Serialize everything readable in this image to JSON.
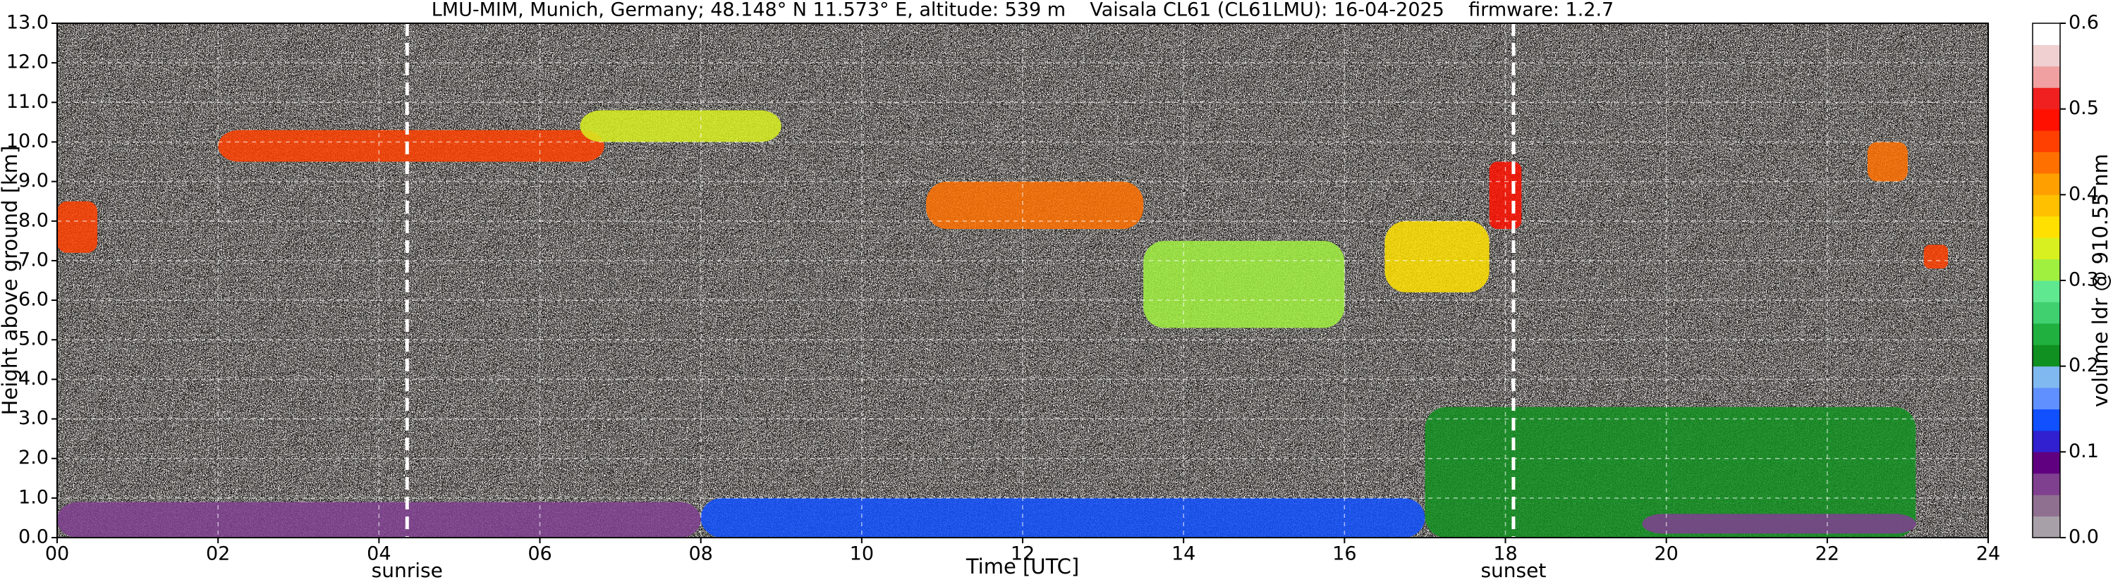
{
  "chart_data": {
    "type": "heatmap",
    "title": "LMU-MIM, Munich, Germany; 48.148° N 11.573° E, altitude: 539 m    Vaisala CL61 (CL61LMU): 16-04-2025    firmware: 1.2.7",
    "x_label": "Time [UTC]",
    "y_label": "Height above ground [km]",
    "xlim": [
      0,
      24
    ],
    "ylim": [
      0,
      13
    ],
    "xticks": [
      {
        "value": 0,
        "label": "00"
      },
      {
        "value": 2,
        "label": "02"
      },
      {
        "value": 4,
        "label": "04"
      },
      {
        "value": 6,
        "label": "06"
      },
      {
        "value": 8,
        "label": "08"
      },
      {
        "value": 10,
        "label": "10"
      },
      {
        "value": 12,
        "label": "12"
      },
      {
        "value": 14,
        "label": "14"
      },
      {
        "value": 16,
        "label": "16"
      },
      {
        "value": 18,
        "label": "18"
      },
      {
        "value": 20,
        "label": "20"
      },
      {
        "value": 22,
        "label": "22"
      },
      {
        "value": 24,
        "label": "24"
      }
    ],
    "yticks": [
      {
        "value": 0,
        "label": "0.0"
      },
      {
        "value": 1,
        "label": "1.0"
      },
      {
        "value": 2,
        "label": "2.0"
      },
      {
        "value": 3,
        "label": "3.0"
      },
      {
        "value": 4,
        "label": "4.0"
      },
      {
        "value": 5,
        "label": "5.0"
      },
      {
        "value": 6,
        "label": "6.0"
      },
      {
        "value": 7,
        "label": "7.0"
      },
      {
        "value": 8,
        "label": "8.0"
      },
      {
        "value": 9,
        "label": "9.0"
      },
      {
        "value": 10,
        "label": "10.0"
      },
      {
        "value": 11,
        "label": "11.0"
      },
      {
        "value": 12,
        "label": "12.0"
      },
      {
        "value": 13,
        "label": "13.0"
      }
    ],
    "grid": true,
    "annotations": [
      {
        "text": "sunrise",
        "x": 4.35
      },
      {
        "text": "sunset",
        "x": 18.1
      }
    ],
    "colorbar": {
      "label": "volume ldr @ 910.55 nm",
      "clim": [
        0,
        0.6
      ],
      "ticks": [
        {
          "value": 0,
          "label": "0.0"
        },
        {
          "value": 0.1,
          "label": "0.1"
        },
        {
          "value": 0.2,
          "label": "0.2"
        },
        {
          "value": 0.3,
          "label": "0.3"
        },
        {
          "value": 0.4,
          "label": "0.4"
        },
        {
          "value": 0.5,
          "label": "0.5"
        },
        {
          "value": 0.6,
          "label": "0.6"
        }
      ],
      "colors": [
        "#a8a0a8",
        "#907090",
        "#804090",
        "#600080",
        "#3020d0",
        "#1050ff",
        "#6090ff",
        "#80b8f0",
        "#109020",
        "#20b040",
        "#40d070",
        "#60e890",
        "#a0f040",
        "#d8f020",
        "#ffe000",
        "#ffc000",
        "#ffa000",
        "#ff7000",
        "#ff4000",
        "#ff1000",
        "#f02020",
        "#f0a0a0",
        "#f0d0d0",
        "#ffffff"
      ]
    },
    "regions": [
      {
        "x": [
          0,
          8
        ],
        "y": [
          0,
          0.9
        ],
        "value": 0.07
      },
      {
        "x": [
          8,
          17
        ],
        "y": [
          0,
          1.0
        ],
        "value": 0.14
      },
      {
        "x": [
          17,
          23.1
        ],
        "y": [
          0,
          3.3
        ],
        "value": 0.22
      },
      {
        "x": [
          19.7,
          23.1
        ],
        "y": [
          0.1,
          0.6
        ],
        "value": 0.06
      },
      {
        "x": [
          2,
          6.8
        ],
        "y": [
          9.5,
          10.3
        ],
        "value": 0.45
      },
      {
        "x": [
          6.5,
          9
        ],
        "y": [
          10,
          10.8
        ],
        "value": 0.33
      },
      {
        "x": [
          0,
          0.5
        ],
        "y": [
          7.2,
          8.5
        ],
        "value": 0.47
      },
      {
        "x": [
          10.8,
          13.5
        ],
        "y": [
          7.8,
          9
        ],
        "value": 0.44
      },
      {
        "x": [
          13.5,
          16
        ],
        "y": [
          5.3,
          7.5
        ],
        "value": 0.32
      },
      {
        "x": [
          16.5,
          17.8
        ],
        "y": [
          6.2,
          8
        ],
        "value": 0.37
      },
      {
        "x": [
          17.8,
          18.2
        ],
        "y": [
          7.8,
          9.5
        ],
        "value": 0.48
      },
      {
        "x": [
          22.5,
          23
        ],
        "y": [
          9,
          10
        ],
        "value": 0.44
      },
      {
        "x": [
          23.2,
          23.5
        ],
        "y": [
          6.8,
          7.4
        ],
        "value": 0.46
      }
    ]
  }
}
